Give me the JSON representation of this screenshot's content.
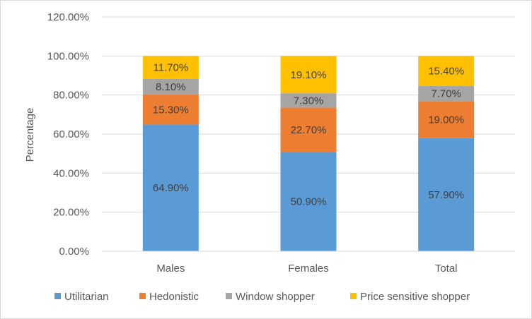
{
  "chart_data": {
    "type": "bar",
    "stacked": true,
    "title": "",
    "xlabel": "",
    "ylabel": "Percentage",
    "ylim": [
      0,
      120
    ],
    "yticks": [
      "0.00%",
      "20.00%",
      "40.00%",
      "60.00%",
      "80.00%",
      "100.00%",
      "120.00%"
    ],
    "ytick_values": [
      0,
      20,
      40,
      60,
      80,
      100,
      120
    ],
    "grid": true,
    "legend_position": "bottom",
    "categories": [
      "Males",
      "Females",
      "Total"
    ],
    "series": [
      {
        "name": "Utilitarian",
        "color": "#5b9bd5",
        "values": [
          64.9,
          50.9,
          57.9
        ],
        "labels": [
          "64.90%",
          "50.90%",
          "57.90%"
        ]
      },
      {
        "name": "Hedonistic",
        "color": "#ed7d31",
        "values": [
          15.3,
          22.7,
          19.0
        ],
        "labels": [
          "15.30%",
          "22.70%",
          "19.00%"
        ]
      },
      {
        "name": "Window shopper",
        "color": "#a5a5a5",
        "values": [
          8.1,
          7.3,
          7.7
        ],
        "labels": [
          "8.10%",
          "7.30%",
          "7.70%"
        ]
      },
      {
        "name": "Price sensitive shopper",
        "color": "#ffc000",
        "values": [
          11.7,
          19.1,
          15.4
        ],
        "labels": [
          "11.70%",
          "19.10%",
          "15.40%"
        ]
      }
    ]
  }
}
